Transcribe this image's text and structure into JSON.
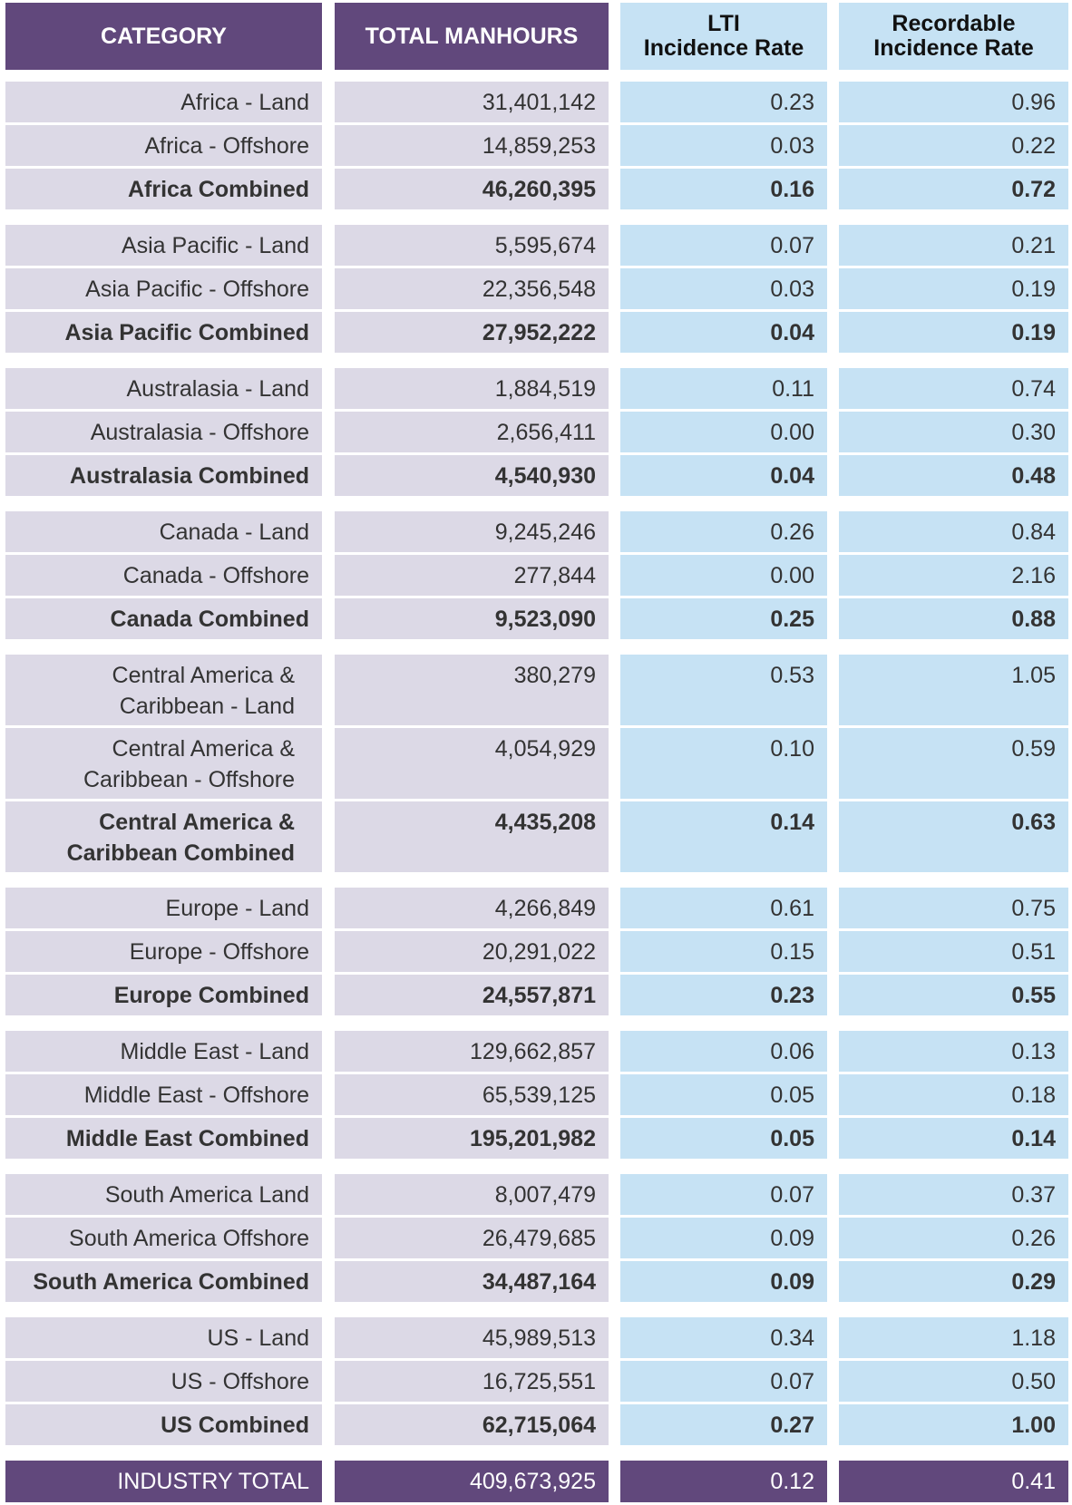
{
  "header": {
    "category": "CATEGORY",
    "total_manhours": "TOTAL MANHOURS",
    "lti_line1": "LTI",
    "lti_line2": "Incidence Rate",
    "rec_line1": "Recordable",
    "rec_line2": "Incidence Rate"
  },
  "groups": [
    {
      "rows": [
        {
          "category": "Africa - Land",
          "manhours": "31,401,142",
          "lti": "0.23",
          "recordable": "0.96"
        },
        {
          "category": "Africa - Offshore",
          "manhours": "14,859,253",
          "lti": "0.03",
          "recordable": "0.22"
        },
        {
          "category": "Africa Combined",
          "manhours": "46,260,395",
          "lti": "0.16",
          "recordable": "0.72",
          "combined": true
        }
      ]
    },
    {
      "rows": [
        {
          "category": "Asia Pacific  - Land",
          "manhours": "5,595,674",
          "lti": "0.07",
          "recordable": "0.21"
        },
        {
          "category": "Asia Pacific - Offshore",
          "manhours": "22,356,548",
          "lti": "0.03",
          "recordable": "0.19"
        },
        {
          "category": "Asia Pacific Combined",
          "manhours": "27,952,222",
          "lti": "0.04",
          "recordable": "0.19",
          "combined": true
        }
      ]
    },
    {
      "rows": [
        {
          "category": "Australasia - Land",
          "manhours": "1,884,519",
          "lti": "0.11",
          "recordable": "0.74"
        },
        {
          "category": "Australasia - Offshore",
          "manhours": "2,656,411",
          "lti": "0.00",
          "recordable": "0.30"
        },
        {
          "category": "Australasia Combined",
          "manhours": "4,540,930",
          "lti": "0.04",
          "recordable": "0.48",
          "combined": true
        }
      ]
    },
    {
      "rows": [
        {
          "category": "Canada - Land",
          "manhours": "9,245,246",
          "lti": "0.26",
          "recordable": "0.84"
        },
        {
          "category": "Canada - Offshore",
          "manhours": "277,844",
          "lti": "0.00",
          "recordable": "2.16"
        },
        {
          "category": "Canada Combined",
          "manhours": "9,523,090",
          "lti": "0.25",
          "recordable": "0.88",
          "combined": true
        }
      ]
    },
    {
      "tall": true,
      "rows": [
        {
          "category": "Central America & Caribbean - Land",
          "manhours": "380,279",
          "lti": "0.53",
          "recordable": "1.05"
        },
        {
          "category": "Central America & Caribbean - Offshore",
          "manhours": "4,054,929",
          "lti": "0.10",
          "recordable": "0.59"
        },
        {
          "category": "Central America & Caribbean Combined",
          "manhours": "4,435,208",
          "lti": "0.14",
          "recordable": "0.63",
          "combined": true
        }
      ]
    },
    {
      "rows": [
        {
          "category": "Europe - Land",
          "manhours": "4,266,849",
          "lti": "0.61",
          "recordable": "0.75"
        },
        {
          "category": "Europe - Offshore",
          "manhours": "20,291,022",
          "lti": "0.15",
          "recordable": "0.51"
        },
        {
          "category": "Europe Combined",
          "manhours": "24,557,871",
          "lti": "0.23",
          "recordable": "0.55",
          "combined": true
        }
      ]
    },
    {
      "rows": [
        {
          "category": "Middle East - Land",
          "manhours": "129,662,857",
          "lti": "0.06",
          "recordable": "0.13"
        },
        {
          "category": "Middle East - Offshore",
          "manhours": "65,539,125",
          "lti": "0.05",
          "recordable": "0.18"
        },
        {
          "category": "Middle East Combined",
          "manhours": "195,201,982",
          "lti": "0.05",
          "recordable": "0.14",
          "combined": true
        }
      ]
    },
    {
      "rows": [
        {
          "category": "South America Land",
          "manhours": "8,007,479",
          "lti": "0.07",
          "recordable": "0.37"
        },
        {
          "category": "South America Offshore",
          "manhours": "26,479,685",
          "lti": "0.09",
          "recordable": "0.26"
        },
        {
          "category": "South America Combined",
          "manhours": "34,487,164",
          "lti": "0.09",
          "recordable": "0.29",
          "combined": true
        }
      ]
    },
    {
      "rows": [
        {
          "category": "US - Land",
          "manhours": "45,989,513",
          "lti": "0.34",
          "recordable": "1.18"
        },
        {
          "category": "US - Offshore",
          "manhours": "16,725,551",
          "lti": "0.07",
          "recordable": "0.50"
        },
        {
          "category": "US Combined",
          "manhours": "62,715,064",
          "lti": "0.27",
          "recordable": "1.00",
          "combined": true
        }
      ]
    }
  ],
  "total": {
    "category": "INDUSTRY TOTAL",
    "manhours": "409,673,925",
    "lti": "0.12",
    "recordable": "0.41"
  },
  "colors": {
    "purple": "#61487c",
    "lavender": "#dcd9e6",
    "light_blue": "#c6e2f4"
  }
}
